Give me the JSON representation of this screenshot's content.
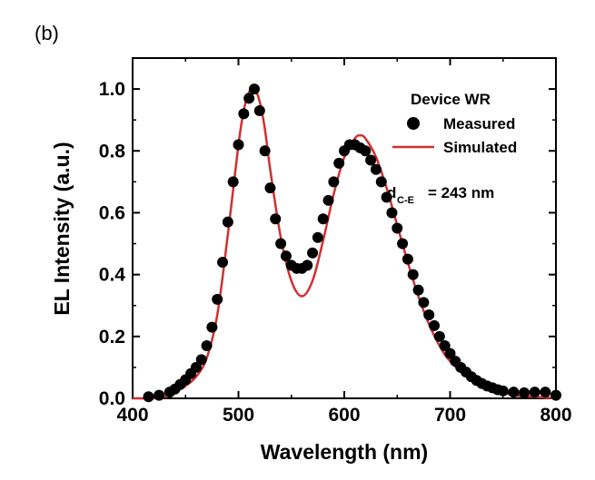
{
  "panel_label": "(b)",
  "chart_data": {
    "type": "line",
    "xlabel": "Wavelength (nm)",
    "ylabel": "EL Intensity (a.u.)",
    "xlim": [
      400,
      800
    ],
    "ylim": [
      0,
      1.1
    ],
    "xticks": [
      400,
      500,
      600,
      700,
      800
    ],
    "xtick_labels": [
      "400",
      "500",
      "600",
      "700",
      "800"
    ],
    "yticks": [
      0.0,
      0.2,
      0.4,
      0.6,
      0.8,
      1.0
    ],
    "ytick_labels": [
      "0.0",
      "0.2",
      "0.4",
      "0.6",
      "0.8",
      "1.0"
    ],
    "legend": {
      "title": "Device WR",
      "placement": "top-right",
      "entries": [
        "Measured",
        "Simulated"
      ]
    },
    "annotation": {
      "main": "d",
      "subscript": "C-E",
      "value": "= 243 nm"
    },
    "series": [
      {
        "name": "Measured",
        "style": "markers",
        "color": "#000000",
        "x": [
          415,
          425,
          435,
          440,
          445,
          450,
          455,
          460,
          465,
          470,
          475,
          480,
          485,
          490,
          495,
          500,
          505,
          510,
          515,
          520,
          525,
          530,
          535,
          540,
          545,
          550,
          555,
          560,
          565,
          570,
          575,
          580,
          585,
          590,
          595,
          600,
          605,
          610,
          615,
          620,
          625,
          630,
          635,
          640,
          645,
          650,
          655,
          660,
          665,
          670,
          675,
          680,
          685,
          690,
          695,
          700,
          705,
          710,
          715,
          720,
          725,
          730,
          735,
          740,
          745,
          750,
          760,
          770,
          780,
          790,
          800
        ],
        "y": [
          0.005,
          0.01,
          0.02,
          0.03,
          0.045,
          0.06,
          0.08,
          0.1,
          0.125,
          0.17,
          0.23,
          0.32,
          0.44,
          0.57,
          0.7,
          0.82,
          0.92,
          0.97,
          1.0,
          0.93,
          0.8,
          0.68,
          0.58,
          0.5,
          0.46,
          0.43,
          0.42,
          0.42,
          0.43,
          0.47,
          0.52,
          0.58,
          0.64,
          0.7,
          0.76,
          0.8,
          0.82,
          0.82,
          0.81,
          0.8,
          0.77,
          0.74,
          0.7,
          0.65,
          0.6,
          0.55,
          0.5,
          0.45,
          0.4,
          0.35,
          0.31,
          0.27,
          0.235,
          0.2,
          0.17,
          0.145,
          0.12,
          0.1,
          0.085,
          0.07,
          0.058,
          0.048,
          0.04,
          0.034,
          0.028,
          0.024,
          0.02,
          0.018,
          0.02,
          0.02,
          0.01
        ]
      },
      {
        "name": "Simulated",
        "style": "line",
        "color": "#d03030",
        "x": [
          400,
          420,
          430,
          440,
          450,
          460,
          470,
          480,
          490,
          500,
          505,
          510,
          515,
          520,
          525,
          530,
          540,
          550,
          560,
          570,
          580,
          590,
          600,
          610,
          615,
          620,
          630,
          640,
          650,
          660,
          670,
          680,
          690,
          700,
          720,
          740,
          760,
          780,
          800
        ],
        "y": [
          0.0,
          0.0,
          0.005,
          0.02,
          0.04,
          0.07,
          0.13,
          0.27,
          0.53,
          0.82,
          0.93,
          0.99,
          1.0,
          0.96,
          0.87,
          0.74,
          0.52,
          0.38,
          0.33,
          0.38,
          0.51,
          0.66,
          0.78,
          0.84,
          0.85,
          0.84,
          0.78,
          0.68,
          0.56,
          0.44,
          0.33,
          0.24,
          0.17,
          0.12,
          0.06,
          0.03,
          0.01,
          0.005,
          0.0
        ]
      }
    ]
  }
}
